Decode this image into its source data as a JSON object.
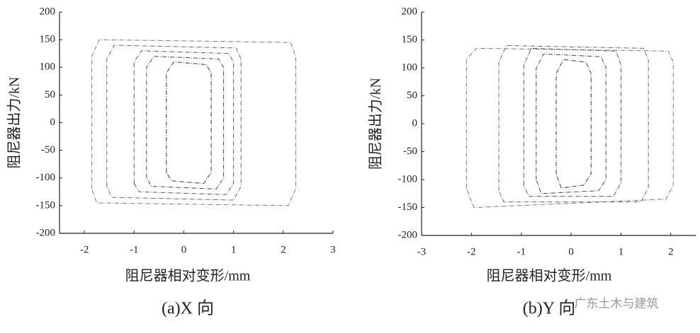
{
  "chart_data": [
    {
      "type": "line",
      "caption": "(a)X 向",
      "xlabel": "阻尼器相对变形/mm",
      "ylabel": "阻尼器出力/kN",
      "xlim": [
        -2.5,
        3
      ],
      "xticks": [
        -2,
        -1,
        0,
        1,
        2,
        3
      ],
      "ylim": [
        -200,
        200
      ],
      "yticks": [
        -200,
        -150,
        -100,
        -50,
        0,
        50,
        100,
        150,
        200
      ],
      "series": [
        {
          "color": "#777",
          "x": [
            -1.85,
            -1.85,
            -1.7,
            2.15,
            2.25,
            2.25,
            2.1,
            -1.75,
            -1.85
          ],
          "values": [
            -120,
            120,
            150,
            145,
            120,
            -120,
            -150,
            -145,
            -120
          ]
        },
        {
          "color": "#666",
          "x": [
            -1.55,
            -1.55,
            -1.4,
            1.05,
            1.15,
            1.15,
            1.0,
            -1.45,
            -1.55
          ],
          "values": [
            -115,
            115,
            140,
            135,
            115,
            -115,
            -140,
            -135,
            -115
          ]
        },
        {
          "color": "#555",
          "x": [
            -1.0,
            -1.0,
            -0.85,
            0.9,
            1.0,
            1.0,
            0.85,
            -0.9,
            -1.0
          ],
          "values": [
            -110,
            110,
            130,
            125,
            110,
            -110,
            -130,
            -125,
            -110
          ]
        },
        {
          "color": "#444",
          "x": [
            -0.75,
            -0.75,
            -0.6,
            0.7,
            0.8,
            0.8,
            0.65,
            -0.65,
            -0.75
          ],
          "values": [
            -100,
            100,
            120,
            115,
            100,
            -100,
            -120,
            -115,
            -100
          ]
        },
        {
          "color": "#333",
          "x": [
            -0.35,
            -0.35,
            -0.2,
            0.45,
            0.55,
            0.55,
            0.4,
            -0.25,
            -0.35
          ],
          "values": [
            -90,
            90,
            110,
            105,
            90,
            -90,
            -110,
            -105,
            -90
          ]
        }
      ]
    },
    {
      "type": "line",
      "caption": "(b)Y 向",
      "xlabel": "阻尼器相对变形/mm",
      "ylabel": "阻尼器出力/kN",
      "xlim": [
        -3,
        2.5
      ],
      "xticks": [
        -3,
        -2,
        -1,
        0,
        1,
        2
      ],
      "ylim": [
        -200,
        200
      ],
      "yticks": [
        -200,
        -150,
        -100,
        -50,
        0,
        50,
        100,
        150,
        200
      ],
      "series": [
        {
          "color": "#777",
          "x": [
            -2.1,
            -2.1,
            -1.9,
            1.95,
            2.05,
            2.05,
            1.9,
            -1.95,
            -2.1
          ],
          "values": [
            -115,
            115,
            135,
            130,
            110,
            -110,
            -135,
            -150,
            -115
          ]
        },
        {
          "color": "#666",
          "x": [
            -1.45,
            -1.45,
            -1.3,
            1.45,
            1.55,
            1.55,
            1.4,
            -1.35,
            -1.45
          ],
          "values": [
            -120,
            110,
            140,
            135,
            115,
            -115,
            -140,
            -140,
            -120
          ]
        },
        {
          "color": "#555",
          "x": [
            -0.95,
            -0.95,
            -0.8,
            0.9,
            1.0,
            1.0,
            0.85,
            -0.85,
            -0.95
          ],
          "values": [
            -110,
            105,
            135,
            130,
            105,
            -105,
            -130,
            -130,
            -110
          ]
        },
        {
          "color": "#444",
          "x": [
            -0.7,
            -0.7,
            -0.55,
            0.6,
            0.7,
            0.7,
            0.55,
            -0.6,
            -0.7
          ],
          "values": [
            -100,
            100,
            125,
            120,
            100,
            -100,
            -120,
            -125,
            -100
          ]
        },
        {
          "color": "#333",
          "x": [
            -0.3,
            -0.3,
            -0.15,
            0.3,
            0.4,
            0.4,
            0.25,
            -0.2,
            -0.3
          ],
          "values": [
            -90,
            90,
            115,
            110,
            90,
            -90,
            -110,
            -115,
            -90
          ]
        }
      ]
    }
  ],
  "watermark": "广东土木与建筑"
}
